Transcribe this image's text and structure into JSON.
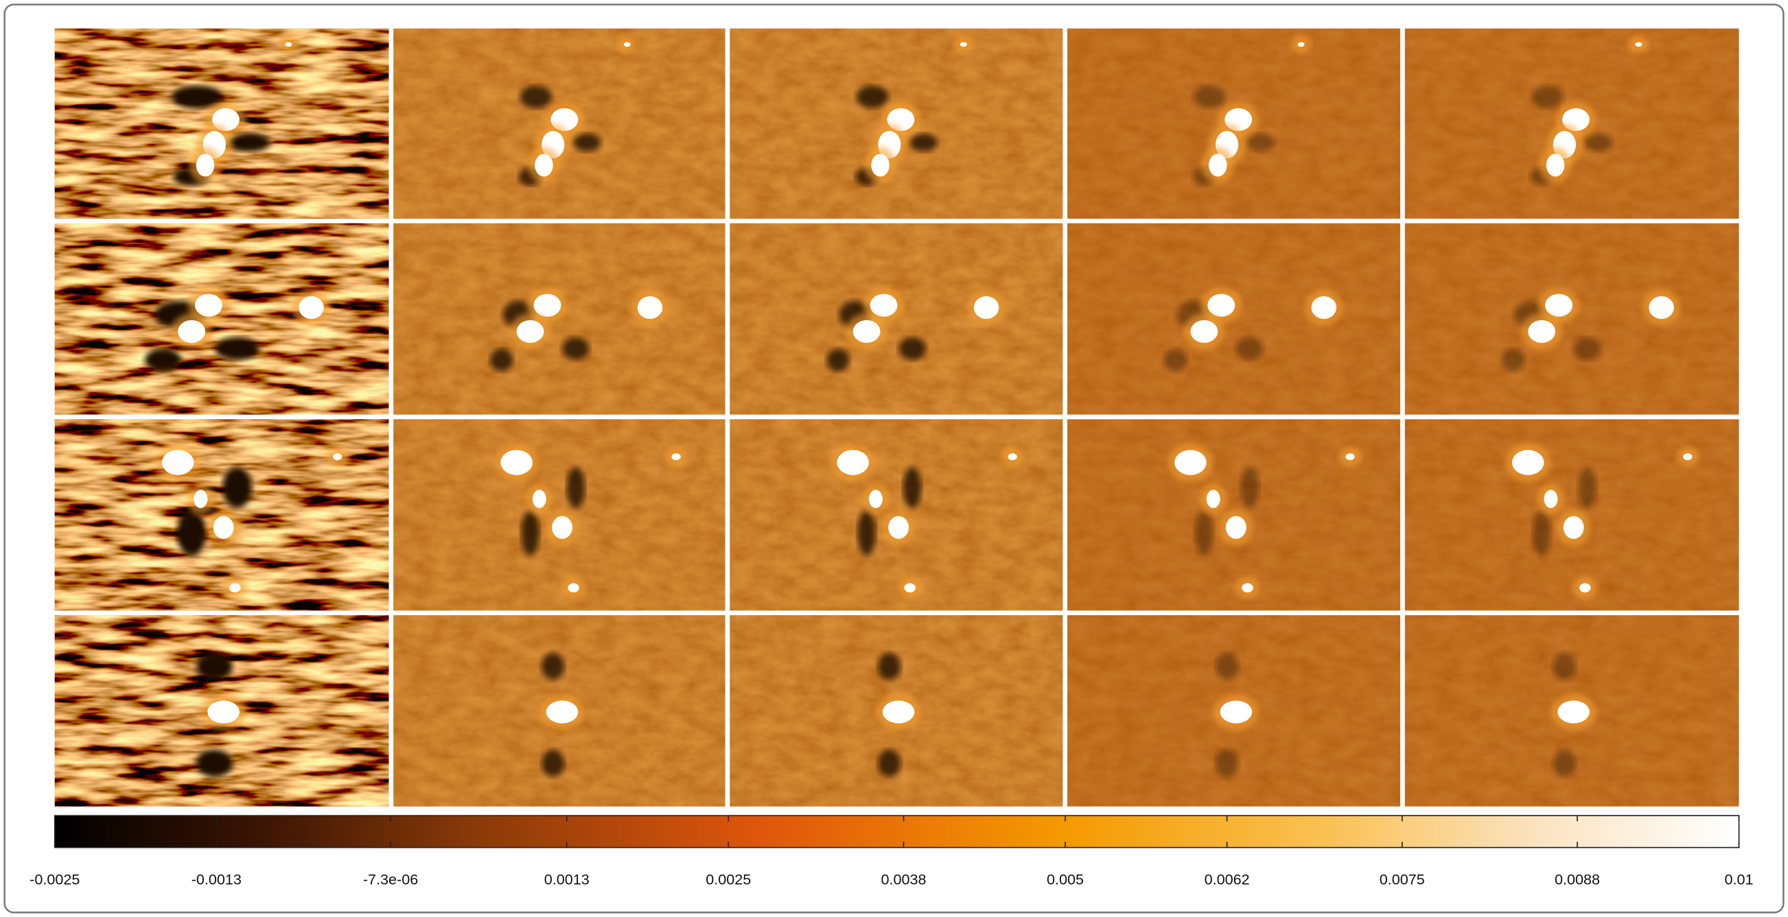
{
  "colorbar": {
    "lim": [
      -0.0025,
      0.01
    ],
    "ticks": [
      -0.0025,
      -0.0013,
      {
        "value": -7.3e-06,
        "label": "-7.3e-06"
      },
      0.0013,
      0.0025,
      0.0038,
      0.005,
      0.0062,
      0.0075,
      0.0088,
      0.01
    ]
  }
}
